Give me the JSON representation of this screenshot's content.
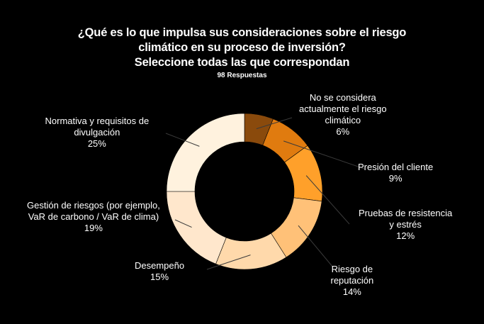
{
  "chart_data": {
    "type": "pie",
    "variant": "donut",
    "title_lines": [
      "¿Qué es lo que impulsa sus consideraciones sobre el riesgo",
      "climático en su proceso de inversión?",
      "Seleccione todas las que correspondan"
    ],
    "subtitle": "98 Respuestas",
    "slices": [
      {
        "label_lines": [
          "No se considera",
          "actualmente el riesgo",
          "climático"
        ],
        "value": 6,
        "value_label": "6%",
        "color": "#8a4a0c"
      },
      {
        "label_lines": [
          "Presión del cliente"
        ],
        "value": 9,
        "value_label": "9%",
        "color": "#e07b0f"
      },
      {
        "label_lines": [
          "Pruebas de resistencia",
          "y estrés"
        ],
        "value": 12,
        "value_label": "12%",
        "color": "#ffa02a"
      },
      {
        "label_lines": [
          "Riesgo de",
          "reputación"
        ],
        "value": 14,
        "value_label": "14%",
        "color": "#ffc178"
      },
      {
        "label_lines": [
          "Desempeño"
        ],
        "value": 15,
        "value_label": "15%",
        "color": "#ffd9ab"
      },
      {
        "label_lines": [
          "Gestión de riesgos (por ejemplo,",
          "VaR de carbono / VaR de clima)"
        ],
        "value": 19,
        "value_label": "19%",
        "color": "#ffe7cc"
      },
      {
        "label_lines": [
          "Normativa y requisitos de",
          "divulgación"
        ],
        "value": 25,
        "value_label": "25%",
        "color": "#fff2de"
      }
    ],
    "legend": "none"
  }
}
